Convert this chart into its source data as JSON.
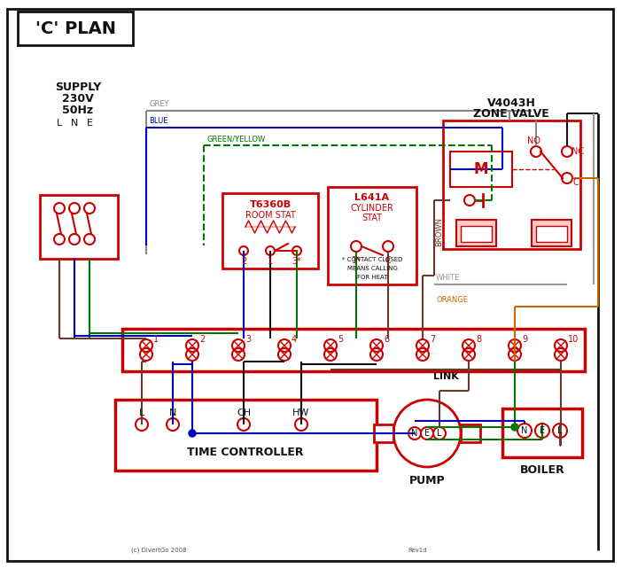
{
  "title": "'C' PLAN",
  "red": "#cc0000",
  "blue": "#0000bb",
  "green": "#007700",
  "grey": "#888888",
  "brown": "#6B3A2A",
  "orange": "#CC6600",
  "black": "#111111",
  "white_wire": "#999999",
  "zone_valve_text": [
    "V4043H",
    "ZONE VALVE"
  ],
  "room_stat_text": [
    "T6360B",
    "ROOM STAT"
  ],
  "cyl_stat_text": [
    "L641A",
    "CYLINDER",
    "STAT"
  ],
  "time_ctrl_text": "TIME CONTROLLER",
  "tc_terminal_labels": [
    "L",
    "N",
    "CH",
    "HW"
  ],
  "pump_text": "PUMP",
  "boiler_text": "BOILER",
  "copyright": "(c) DivertGo 2008",
  "rev": "Rev1d"
}
